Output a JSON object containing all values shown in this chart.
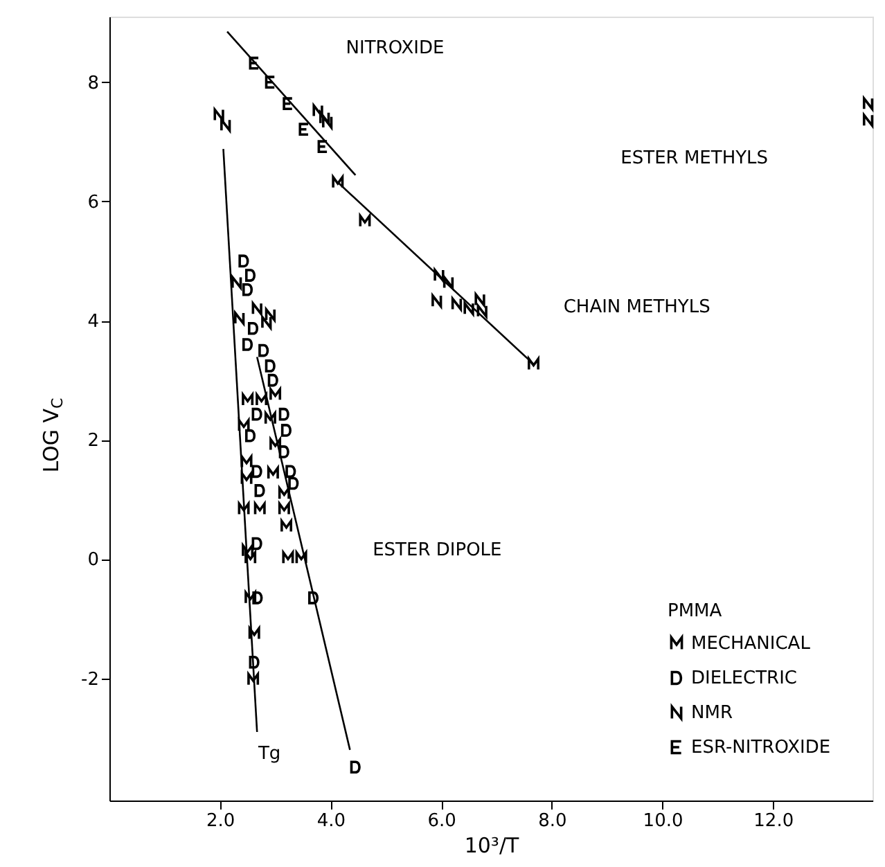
{
  "chart_data": {
    "type": "scatter",
    "xlabel": "10³/T",
    "ylabel": "LOG V$_{C}$",
    "legend_title": "PMMA",
    "legend": "bottom right",
    "grid": false,
    "xlim": [
      0,
      13.8
    ],
    "ylim": [
      -4.05,
      9.1
    ],
    "xticks": [
      {
        "value": 2,
        "label": "2.0"
      },
      {
        "value": 4,
        "label": "4.0"
      },
      {
        "value": 6,
        "label": "6.0"
      },
      {
        "value": 8,
        "label": "8.0"
      },
      {
        "value": 10,
        "label": "10.0"
      },
      {
        "value": 12,
        "label": "12.0"
      }
    ],
    "yticks": [
      -2,
      0,
      2,
      4,
      6,
      8
    ],
    "series": [
      {
        "name": "MECHANICAL",
        "color": "#000000",
        "x": [
          4.13,
          4.62,
          7.67,
          3.0,
          2.5,
          2.75,
          2.91,
          2.43,
          3.0,
          2.48,
          2.96,
          2.48,
          3.16,
          2.43,
          2.72,
          3.16,
          3.2,
          2.5,
          2.55,
          3.23,
          3.47,
          2.55,
          2.62,
          2.6
        ],
        "values": [
          6.32,
          5.67,
          3.27,
          2.76,
          2.67,
          2.67,
          2.36,
          2.24,
          1.92,
          1.63,
          1.44,
          1.35,
          1.1,
          0.84,
          0.84,
          0.84,
          0.55,
          0.14,
          0.02,
          0.02,
          0.02,
          -0.65,
          -1.25,
          -2.02
        ]
      },
      {
        "name": "DIELECTRIC",
        "color": "#000000",
        "x": [
          2.43,
          2.55,
          2.5,
          2.6,
          2.5,
          2.79,
          2.91,
          2.96,
          2.67,
          3.16,
          3.2,
          2.55,
          3.16,
          2.67,
          3.28,
          3.33,
          2.72,
          2.67,
          3.69,
          2.68,
          2.62,
          4.45
        ],
        "values": [
          5.0,
          4.76,
          4.52,
          3.87,
          3.6,
          3.5,
          3.24,
          3.0,
          2.43,
          2.43,
          2.16,
          2.07,
          1.8,
          1.47,
          1.47,
          1.27,
          1.15,
          0.26,
          -0.65,
          -0.65,
          -1.73,
          -3.49
        ]
      },
      {
        "name": "NMR",
        "color": "#000000",
        "x": [
          1.98,
          2.1,
          3.77,
          3.89,
          3.94,
          5.96,
          6.13,
          5.92,
          6.28,
          6.5,
          6.7,
          6.74,
          2.3,
          2.67,
          2.91,
          2.35,
          2.84,
          13.72,
          13.72
        ],
        "values": [
          7.45,
          7.28,
          7.52,
          7.4,
          7.33,
          4.76,
          4.64,
          4.33,
          4.28,
          4.2,
          4.35,
          4.16,
          4.64,
          4.2,
          4.1,
          4.04,
          3.97,
          7.64,
          7.36
        ]
      },
      {
        "name": "ESR-NITROXIDE",
        "color": "#000000",
        "x": [
          2.62,
          2.91,
          3.23,
          3.52,
          3.86
        ],
        "values": [
          8.32,
          8.0,
          7.64,
          7.21,
          6.92
        ]
      },
      {
        "type": "line",
        "color": "#000000",
        "x": [
          2.06,
          2.67
        ],
        "values": [
          6.88,
          -2.9
        ]
      },
      {
        "type": "line",
        "color": "#000000",
        "x": [
          2.67,
          4.35
        ],
        "values": [
          3.39,
          -3.2
        ]
      },
      {
        "type": "line",
        "color": "#000000",
        "x": [
          2.13,
          4.45
        ],
        "values": [
          8.85,
          6.44
        ]
      },
      {
        "type": "line",
        "color": "#000000",
        "x": [
          4.13,
          7.67
        ],
        "values": [
          6.32,
          3.27
        ]
      }
    ],
    "annotations": [
      "NITROXIDE",
      "CHAIN METHYLS",
      "ESTER METHYLS",
      "ESTER DIPOLE",
      "Tg"
    ]
  }
}
